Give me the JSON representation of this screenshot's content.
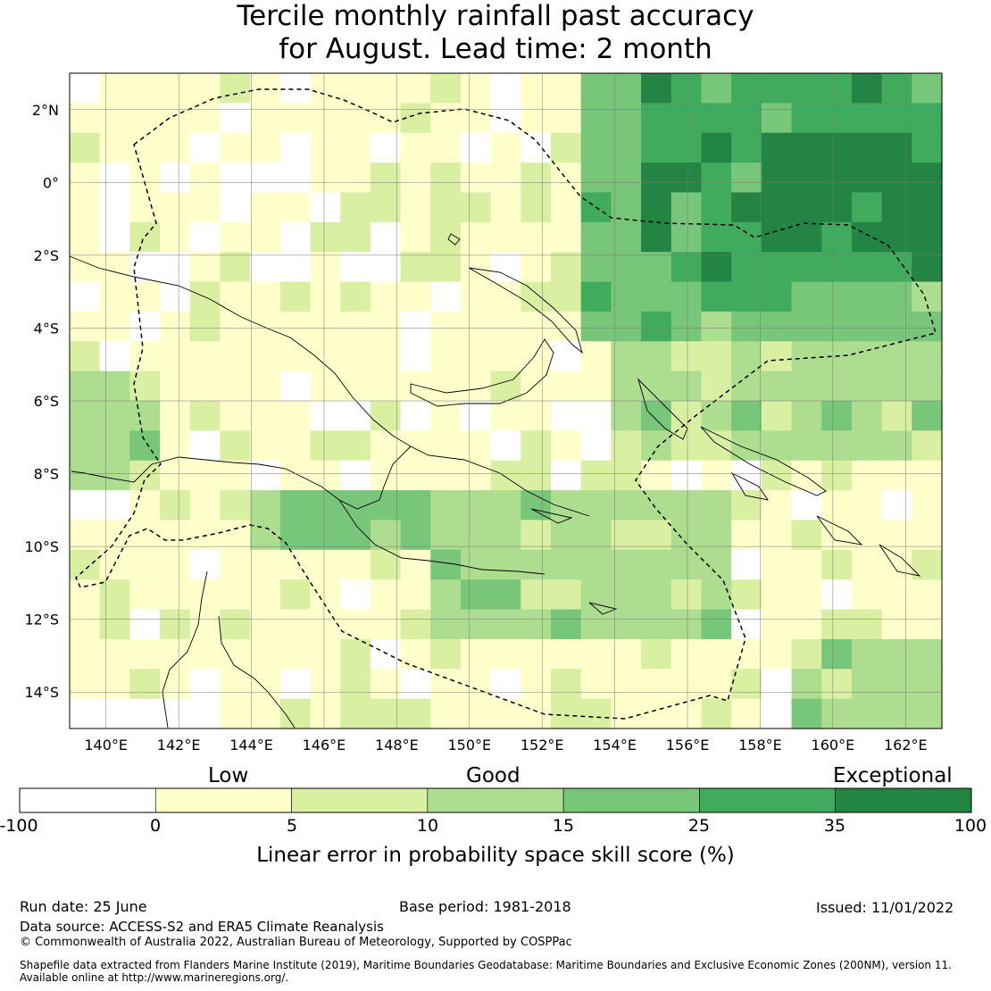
{
  "title_line1": "Tercile monthly rainfall past accuracy",
  "title_line2": "for August. Lead time: 2 month",
  "map": {
    "lon_range": [
      139,
      163
    ],
    "lat_range": [
      -15,
      3
    ],
    "lon_ticks": [
      "140°E",
      "142°E",
      "144°E",
      "146°E",
      "148°E",
      "150°E",
      "152°E",
      "154°E",
      "156°E",
      "158°E",
      "160°E",
      "162°E"
    ],
    "lat_ticks": [
      "2°N",
      "0°",
      "2°S",
      "4°S",
      "6°S",
      "8°S",
      "10°S",
      "12°S",
      "14°S"
    ]
  },
  "colorbar": {
    "category_labels": [
      "Low",
      "Good",
      "Exceptional"
    ],
    "tick_labels": [
      "-100",
      "0",
      "5",
      "10",
      "15",
      "25",
      "35",
      "100"
    ],
    "colors": [
      "#ffffff",
      "#ffffcc",
      "#d9f0a3",
      "#addd8e",
      "#78c679",
      "#41ab5d",
      "#238443"
    ],
    "title": "Linear error in probability space skill score (%)"
  },
  "footer": {
    "run_date": "Run date: 25 June",
    "base_period": "Base period: 1981-2018",
    "issued": "Issued: 11/01/2022",
    "data_source": "Data source: ACCESS-S2 and ERA5 Climate Reanalysis",
    "copyright": "© Commonwealth of Australia 2022, Australian Bureau of Meteorology, Supported by COSPPac",
    "shapefile_line1": "Shapefile data extracted from Flanders Marine Institute (2019), Maritime Boundaries Geodatabase: Maritime Boundaries and Exclusive Economic Zones (200NM), version 11.",
    "shapefile_line2": "Available online at http://www.marineregions.org/."
  }
}
